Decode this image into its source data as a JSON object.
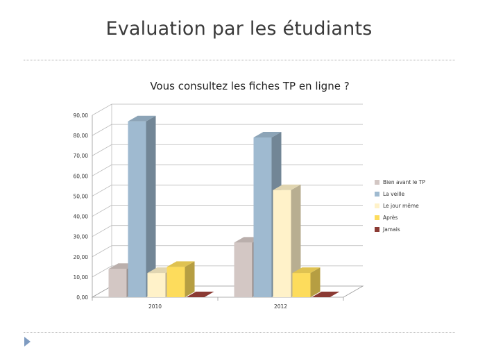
{
  "slide": {
    "title": "Evaluation par les étudiants"
  },
  "colors": {
    "divider": "#a9a9a9",
    "bullet": "#7e9bc1"
  },
  "chart_data": {
    "type": "bar",
    "title": "Vous consultez les fiches TP en ligne ?",
    "categories": [
      "2010",
      "2012"
    ],
    "series": [
      {
        "name": "Bien avant le TP",
        "color": "#d3c7c4",
        "values": [
          14,
          27
        ]
      },
      {
        "name": "La veille",
        "color": "#9fbad0",
        "values": [
          87,
          79
        ]
      },
      {
        "name": "Le jour même",
        "color": "#fff2c9",
        "values": [
          12,
          53
        ]
      },
      {
        "name": "Après",
        "color": "#fddc5c",
        "values": [
          15,
          12
        ]
      },
      {
        "name": "Jamais",
        "color": "#8b3a33",
        "values": [
          0,
          0
        ]
      }
    ],
    "yticks": [
      "0,00",
      "10,00",
      "20,00",
      "30,00",
      "40,00",
      "50,00",
      "60,00",
      "70,00",
      "80,00",
      "90,00"
    ],
    "ylim": [
      0,
      90
    ],
    "grid": true,
    "legend": "right"
  }
}
